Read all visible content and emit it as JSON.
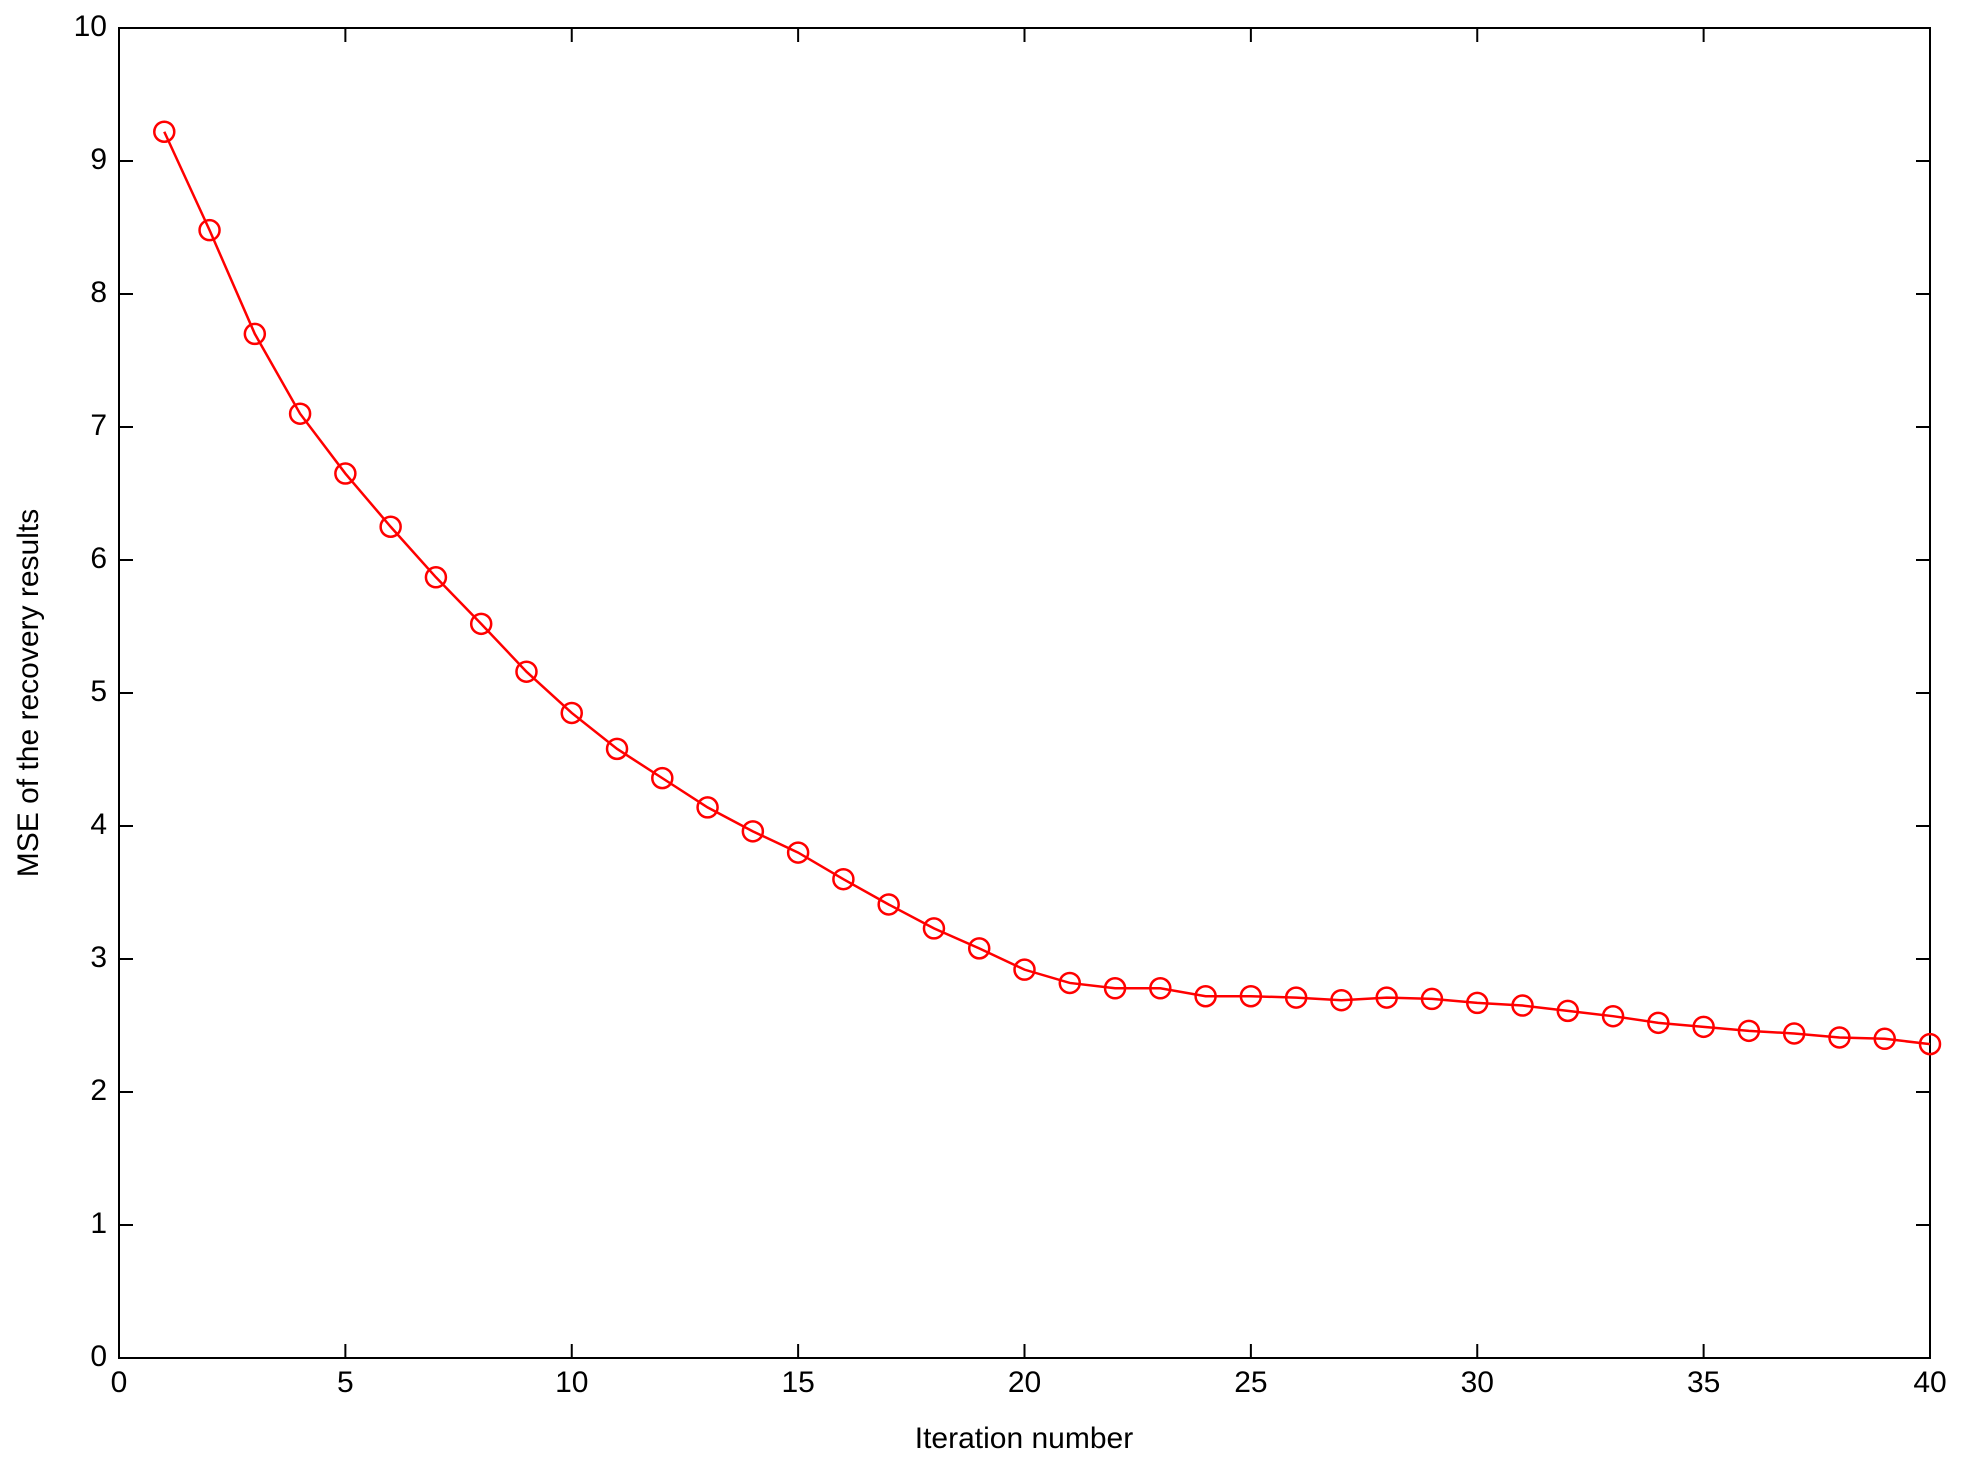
{
  "chart_data": {
    "type": "line",
    "x_label": "Iteration number",
    "y_label": "MSE of the recovery results",
    "x": [
      1,
      2,
      3,
      4,
      5,
      6,
      7,
      8,
      9,
      10,
      11,
      12,
      13,
      14,
      15,
      16,
      17,
      18,
      19,
      20,
      21,
      22,
      23,
      24,
      25,
      26,
      27,
      28,
      29,
      30,
      31,
      32,
      33,
      34,
      35,
      36,
      37,
      38,
      39,
      40
    ],
    "series": [
      {
        "color": "#ff0000",
        "marker": "circle",
        "values": [
          9.22,
          8.48,
          7.7,
          7.1,
          6.65,
          6.25,
          5.87,
          5.52,
          5.16,
          4.85,
          4.58,
          4.36,
          4.14,
          3.96,
          3.8,
          3.6,
          3.41,
          3.23,
          3.08,
          2.92,
          2.82,
          2.78,
          2.78,
          2.72,
          2.72,
          2.71,
          2.69,
          2.71,
          2.7,
          2.67,
          2.65,
          2.61,
          2.57,
          2.52,
          2.49,
          2.46,
          2.44,
          2.41,
          2.4,
          2.36
        ]
      }
    ],
    "xlim": [
      0,
      40
    ],
    "xticks": [
      0,
      5,
      10,
      15,
      20,
      25,
      30,
      35,
      40
    ],
    "ylim": [
      0,
      10
    ],
    "yticks": [
      0,
      1,
      2,
      3,
      4,
      5,
      6,
      7,
      8,
      9,
      10
    ],
    "grid": false
  }
}
